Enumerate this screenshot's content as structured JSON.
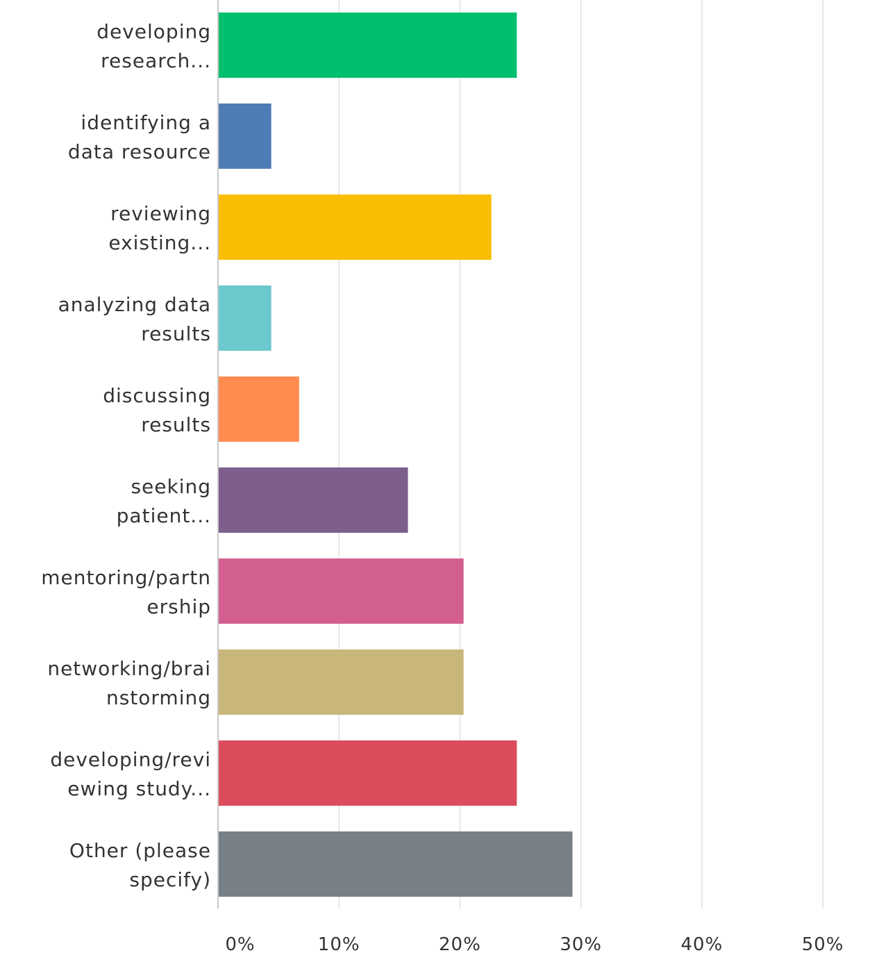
{
  "chart_data": {
    "type": "bar",
    "orientation": "horizontal",
    "title": "",
    "xlabel": "",
    "ylabel": "",
    "categories": [
      [
        "developing",
        "research..."
      ],
      [
        "identifying a",
        "data resource"
      ],
      [
        "reviewing",
        "existing..."
      ],
      [
        "analyzing data",
        "results"
      ],
      [
        "discussing",
        "results"
      ],
      [
        "seeking",
        "patient..."
      ],
      [
        "mentoring/partn",
        "ership"
      ],
      [
        "networking/brai",
        "nstorming"
      ],
      [
        "developing/revi",
        "ewing study..."
      ],
      [
        "Other (please",
        "specify)"
      ]
    ],
    "values": [
      24.7,
      4.4,
      22.6,
      4.4,
      6.7,
      15.7,
      20.3,
      20.3,
      24.7,
      29.3
    ],
    "colors": [
      "#00bf6f",
      "#507cb6",
      "#f9be00",
      "#6bc8cd",
      "#ff8b4f",
      "#7d5e8c",
      "#d25f90",
      "#c9b67b",
      "#db4d5c",
      "#768086"
    ],
    "xlim": [
      0,
      54
    ],
    "xticks": [
      0,
      10,
      20,
      30,
      40,
      50
    ],
    "xtick_labels": [
      "0%",
      "10%",
      "20%",
      "30%",
      "40%",
      "50%"
    ],
    "grid": true,
    "legend": "none"
  }
}
